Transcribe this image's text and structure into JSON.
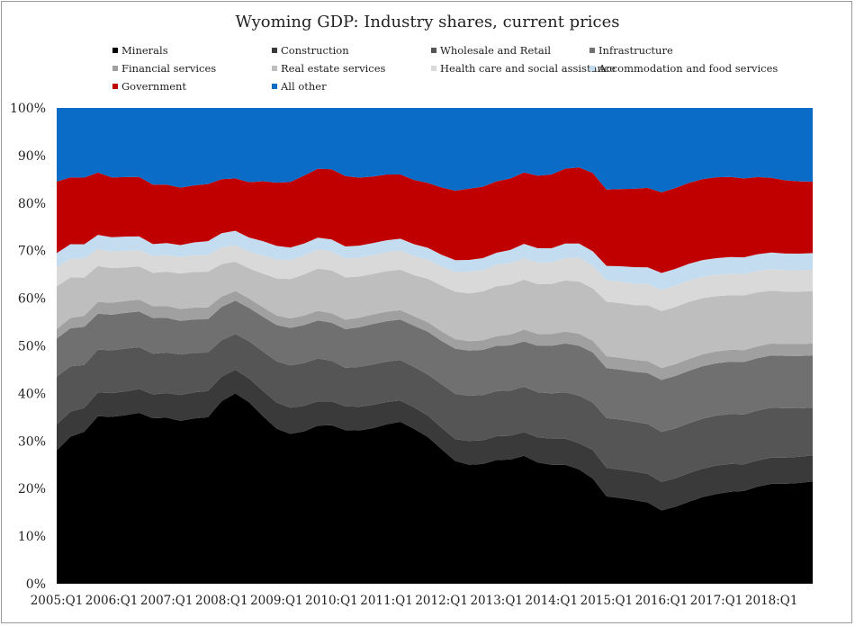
{
  "chart_data": {
    "type": "area",
    "stacked": true,
    "title": "Wyoming GDP: Industry shares, current prices",
    "ylim": [
      0,
      100
    ],
    "yticks": [
      "0%",
      "10%",
      "20%",
      "30%",
      "40%",
      "50%",
      "60%",
      "70%",
      "80%",
      "90%",
      "100%"
    ],
    "xticks": [
      "2005:Q1",
      "2006:Q1",
      "2007:Q1",
      "2008:Q1",
      "2009:Q1",
      "2010:Q1",
      "2011:Q1",
      "2012:Q1",
      "2013:Q1",
      "2014:Q1",
      "2015:Q1",
      "2016:Q1",
      "2017:Q1",
      "2018:Q1"
    ],
    "x_start": "2005:Q1",
    "x_end": "2018:Q4",
    "legend_position": "top",
    "grid": false,
    "series": [
      {
        "name": "Minerals",
        "color": "#000000",
        "points": [
          [
            0,
            28
          ],
          [
            2,
            31
          ],
          [
            4,
            32
          ],
          [
            6,
            35.5
          ],
          [
            8,
            35
          ],
          [
            10,
            35.5
          ],
          [
            12,
            36
          ],
          [
            14,
            34.5
          ],
          [
            16,
            35
          ],
          [
            18,
            34
          ],
          [
            20,
            35
          ],
          [
            22,
            35
          ],
          [
            24,
            40
          ],
          [
            26,
            40
          ],
          [
            28,
            37
          ],
          [
            30,
            34
          ],
          [
            32,
            31.5
          ],
          [
            34,
            31.5
          ],
          [
            36,
            32.5
          ],
          [
            38,
            34
          ],
          [
            40,
            32.5
          ],
          [
            42,
            32
          ],
          [
            44,
            32.5
          ],
          [
            46,
            33
          ],
          [
            48,
            34.5
          ],
          [
            50,
            33
          ],
          [
            52,
            31.5
          ],
          [
            54,
            29
          ],
          [
            56,
            26
          ],
          [
            58,
            25
          ],
          [
            60,
            25
          ],
          [
            62,
            26
          ],
          [
            64,
            26
          ],
          [
            66,
            27
          ],
          [
            68,
            25.5
          ],
          [
            70,
            25
          ],
          [
            72,
            25
          ],
          [
            74,
            24
          ],
          [
            76,
            22
          ],
          [
            78,
            18
          ],
          [
            80,
            18
          ],
          [
            82,
            17.5
          ],
          [
            84,
            17
          ],
          [
            86,
            15
          ],
          [
            88,
            16.5
          ],
          [
            90,
            17.5
          ],
          [
            92,
            18.5
          ],
          [
            94,
            19
          ],
          [
            96,
            19.5
          ],
          [
            98,
            19.5
          ],
          [
            100,
            21
          ],
          [
            102,
            21
          ],
          [
            104,
            21
          ],
          [
            107,
            21.5
          ]
        ]
      },
      {
        "name": "Construction",
        "color": "#3a3a3a",
        "points": [
          [
            0,
            5.5
          ],
          [
            4,
            5
          ],
          [
            6,
            5
          ],
          [
            10,
            5
          ],
          [
            14,
            5
          ],
          [
            18,
            5.5
          ],
          [
            22,
            5.5
          ],
          [
            24,
            5
          ],
          [
            26,
            5
          ],
          [
            28,
            5
          ],
          [
            30,
            5.5
          ],
          [
            34,
            5.5
          ],
          [
            38,
            5
          ],
          [
            40,
            5
          ],
          [
            44,
            5
          ],
          [
            48,
            4.5
          ],
          [
            52,
            4.5
          ],
          [
            54,
            4.5
          ],
          [
            56,
            4.5
          ],
          [
            58,
            5
          ],
          [
            62,
            5
          ],
          [
            66,
            5
          ],
          [
            70,
            5.5
          ],
          [
            74,
            5.5
          ],
          [
            76,
            6
          ],
          [
            78,
            6
          ],
          [
            82,
            6
          ],
          [
            86,
            6
          ],
          [
            90,
            6
          ],
          [
            94,
            6
          ],
          [
            98,
            5.5
          ],
          [
            102,
            5.5
          ],
          [
            107,
            5.5
          ]
        ]
      },
      {
        "name": "Wholesale and Retail",
        "color": "#555555",
        "points": [
          [
            0,
            10
          ],
          [
            4,
            9
          ],
          [
            6,
            9
          ],
          [
            10,
            9
          ],
          [
            14,
            8.5
          ],
          [
            18,
            8.5
          ],
          [
            22,
            8
          ],
          [
            24,
            7.5
          ],
          [
            26,
            7.5
          ],
          [
            28,
            8
          ],
          [
            30,
            8.5
          ],
          [
            34,
            9
          ],
          [
            38,
            9
          ],
          [
            40,
            8
          ],
          [
            44,
            8.5
          ],
          [
            48,
            8.5
          ],
          [
            50,
            8.5
          ],
          [
            52,
            8.5
          ],
          [
            54,
            9
          ],
          [
            56,
            9.5
          ],
          [
            58,
            9.5
          ],
          [
            62,
            9.5
          ],
          [
            66,
            9.5
          ],
          [
            70,
            9.5
          ],
          [
            74,
            10
          ],
          [
            76,
            10
          ],
          [
            78,
            10.5
          ],
          [
            82,
            10.5
          ],
          [
            86,
            10.5
          ],
          [
            90,
            10.5
          ],
          [
            94,
            10.5
          ],
          [
            98,
            10.5
          ],
          [
            102,
            10.5
          ],
          [
            107,
            10
          ]
        ]
      },
      {
        "name": "Infrastructure",
        "color": "#707070",
        "points": [
          [
            0,
            8
          ],
          [
            4,
            8
          ],
          [
            6,
            7.5
          ],
          [
            10,
            7.5
          ],
          [
            14,
            7.5
          ],
          [
            18,
            7
          ],
          [
            22,
            7
          ],
          [
            24,
            7
          ],
          [
            26,
            7
          ],
          [
            28,
            7
          ],
          [
            30,
            7.5
          ],
          [
            34,
            8
          ],
          [
            38,
            8
          ],
          [
            40,
            8
          ],
          [
            44,
            8.5
          ],
          [
            48,
            8.5
          ],
          [
            50,
            8.5
          ],
          [
            52,
            9
          ],
          [
            54,
            9
          ],
          [
            56,
            9.5
          ],
          [
            58,
            9.5
          ],
          [
            62,
            9.5
          ],
          [
            66,
            9.5
          ],
          [
            70,
            10
          ],
          [
            74,
            10.5
          ],
          [
            76,
            10.5
          ],
          [
            78,
            10.5
          ],
          [
            82,
            10.5
          ],
          [
            86,
            11
          ],
          [
            90,
            11
          ],
          [
            94,
            11
          ],
          [
            98,
            11
          ],
          [
            102,
            11
          ],
          [
            107,
            11
          ]
        ]
      },
      {
        "name": "Financial services",
        "color": "#a0a0a0",
        "points": [
          [
            0,
            2
          ],
          [
            6,
            2.5
          ],
          [
            10,
            2.5
          ],
          [
            14,
            2.5
          ],
          [
            18,
            2.5
          ],
          [
            22,
            2.5
          ],
          [
            24,
            2
          ],
          [
            26,
            2
          ],
          [
            28,
            2
          ],
          [
            30,
            2
          ],
          [
            34,
            2
          ],
          [
            38,
            2
          ],
          [
            40,
            2
          ],
          [
            44,
            2
          ],
          [
            48,
            2
          ],
          [
            52,
            2
          ],
          [
            56,
            2
          ],
          [
            58,
            2
          ],
          [
            62,
            2
          ],
          [
            66,
            2.5
          ],
          [
            70,
            2.5
          ],
          [
            74,
            2.5
          ],
          [
            78,
            2.5
          ],
          [
            82,
            2.5
          ],
          [
            86,
            2.5
          ],
          [
            90,
            2.5
          ],
          [
            94,
            2.5
          ],
          [
            98,
            2.5
          ],
          [
            102,
            2.5
          ],
          [
            107,
            2.5
          ]
        ]
      },
      {
        "name": "Real estate services",
        "color": "#bebebe",
        "points": [
          [
            0,
            9
          ],
          [
            4,
            8
          ],
          [
            6,
            7.5
          ],
          [
            10,
            7
          ],
          [
            14,
            7
          ],
          [
            18,
            7.5
          ],
          [
            22,
            7.5
          ],
          [
            24,
            6.5
          ],
          [
            26,
            6
          ],
          [
            28,
            6.5
          ],
          [
            30,
            7.5
          ],
          [
            34,
            8.5
          ],
          [
            38,
            9
          ],
          [
            40,
            9
          ],
          [
            44,
            8.5
          ],
          [
            48,
            8.5
          ],
          [
            50,
            8.5
          ],
          [
            52,
            9
          ],
          [
            54,
            9.5
          ],
          [
            56,
            10
          ],
          [
            58,
            10
          ],
          [
            62,
            10.5
          ],
          [
            66,
            10.5
          ],
          [
            70,
            10.5
          ],
          [
            74,
            11
          ],
          [
            76,
            11
          ],
          [
            78,
            11.5
          ],
          [
            82,
            11.5
          ],
          [
            86,
            12
          ],
          [
            88,
            12
          ],
          [
            90,
            12
          ],
          [
            94,
            11.5
          ],
          [
            98,
            11.5
          ],
          [
            102,
            11
          ],
          [
            107,
            11
          ]
        ]
      },
      {
        "name": "Health care and social assistance",
        "color": "#d9d9d9",
        "points": [
          [
            0,
            4
          ],
          [
            4,
            4
          ],
          [
            6,
            3.5
          ],
          [
            10,
            3.5
          ],
          [
            14,
            3.5
          ],
          [
            18,
            3.5
          ],
          [
            22,
            3.5
          ],
          [
            24,
            3.5
          ],
          [
            26,
            3.5
          ],
          [
            28,
            3.5
          ],
          [
            30,
            4
          ],
          [
            34,
            4
          ],
          [
            38,
            4
          ],
          [
            40,
            4
          ],
          [
            44,
            4
          ],
          [
            48,
            4
          ],
          [
            52,
            4
          ],
          [
            56,
            4
          ],
          [
            58,
            4.5
          ],
          [
            62,
            4.5
          ],
          [
            66,
            4.5
          ],
          [
            70,
            4.5
          ],
          [
            74,
            5
          ],
          [
            78,
            4.5
          ],
          [
            82,
            4.5
          ],
          [
            86,
            4.5
          ],
          [
            90,
            4.5
          ],
          [
            94,
            4.5
          ],
          [
            98,
            4.5
          ],
          [
            102,
            4.5
          ],
          [
            107,
            4.5
          ]
        ]
      },
      {
        "name": "Accommodation and food services",
        "color": "#c4dcef",
        "points": [
          [
            0,
            3
          ],
          [
            4,
            3
          ],
          [
            6,
            3
          ],
          [
            10,
            3
          ],
          [
            14,
            2.5
          ],
          [
            18,
            2.5
          ],
          [
            22,
            3
          ],
          [
            24,
            3
          ],
          [
            26,
            3
          ],
          [
            28,
            3
          ],
          [
            30,
            3
          ],
          [
            34,
            2.5
          ],
          [
            38,
            2.5
          ],
          [
            40,
            2.5
          ],
          [
            44,
            2.5
          ],
          [
            48,
            2.5
          ],
          [
            52,
            2.5
          ],
          [
            56,
            2.5
          ],
          [
            58,
            2.5
          ],
          [
            62,
            2.5
          ],
          [
            66,
            3
          ],
          [
            70,
            3
          ],
          [
            74,
            3
          ],
          [
            78,
            3
          ],
          [
            82,
            3.5
          ],
          [
            86,
            3.5
          ],
          [
            90,
            3.5
          ],
          [
            94,
            3.5
          ],
          [
            98,
            3.5
          ],
          [
            102,
            3.5
          ],
          [
            107,
            3.5
          ]
        ]
      },
      {
        "name": "Government",
        "color": "#c00000",
        "points": [
          [
            0,
            15
          ],
          [
            2,
            14
          ],
          [
            4,
            14
          ],
          [
            6,
            13
          ],
          [
            8,
            12.5
          ],
          [
            10,
            12.5
          ],
          [
            12,
            12.5
          ],
          [
            14,
            12.5
          ],
          [
            18,
            12
          ],
          [
            22,
            12
          ],
          [
            24,
            11
          ],
          [
            26,
            11
          ],
          [
            28,
            12
          ],
          [
            30,
            13
          ],
          [
            34,
            14
          ],
          [
            36,
            14.5
          ],
          [
            38,
            14.5
          ],
          [
            40,
            15
          ],
          [
            44,
            14
          ],
          [
            46,
            14
          ],
          [
            48,
            13.5
          ],
          [
            52,
            13.5
          ],
          [
            54,
            14
          ],
          [
            56,
            14.5
          ],
          [
            58,
            15
          ],
          [
            62,
            15
          ],
          [
            66,
            15
          ],
          [
            70,
            15.5
          ],
          [
            74,
            16
          ],
          [
            76,
            16.5
          ],
          [
            78,
            16
          ],
          [
            82,
            16.5
          ],
          [
            86,
            17
          ],
          [
            88,
            17
          ],
          [
            90,
            17
          ],
          [
            94,
            17
          ],
          [
            98,
            16.5
          ],
          [
            102,
            15.5
          ],
          [
            107,
            15
          ]
        ]
      },
      {
        "name": "All other",
        "color": "#0b6cc7",
        "remainder": true
      }
    ]
  }
}
